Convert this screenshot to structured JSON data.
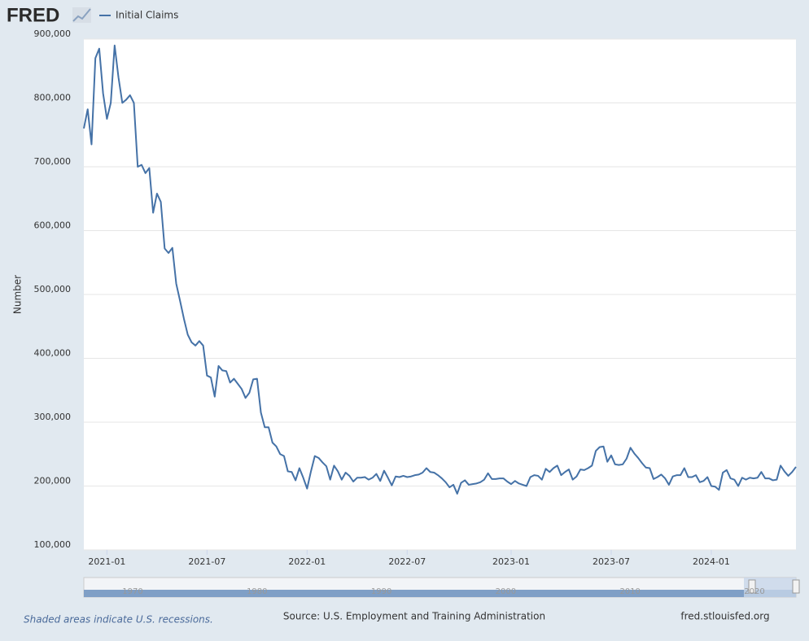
{
  "header": {
    "logo": "FRED"
  },
  "chart_data": {
    "type": "line",
    "ylabel": "Number",
    "categories": [
      null,
      null,
      null,
      null,
      null,
      null,
      "2021-01",
      null,
      null,
      null,
      null,
      null,
      null,
      null,
      null,
      null,
      null,
      null,
      null,
      null,
      null,
      null,
      null,
      null,
      null,
      null,
      null,
      null,
      null,
      null,
      null,
      null,
      "2021-07",
      null,
      null,
      null,
      null,
      null,
      null,
      null,
      null,
      null,
      null,
      null,
      null,
      null,
      null,
      null,
      null,
      null,
      null,
      null,
      null,
      null,
      null,
      null,
      null,
      null,
      "2022-01",
      null,
      null,
      null,
      null,
      null,
      null,
      null,
      null,
      null,
      null,
      null,
      null,
      null,
      null,
      null,
      null,
      null,
      null,
      null,
      null,
      null,
      null,
      null,
      null,
      null,
      "2022-07",
      null,
      null,
      null,
      null,
      null,
      null,
      null,
      null,
      null,
      null,
      null,
      null,
      null,
      null,
      null,
      null,
      null,
      null,
      null,
      null,
      null,
      null,
      null,
      null,
      null,
      null,
      "2023-01",
      null,
      null,
      null,
      null,
      null,
      null,
      null,
      null,
      null,
      null,
      null,
      null,
      null,
      null,
      null,
      null,
      null,
      null,
      null,
      null,
      null,
      null,
      null,
      null,
      null,
      "2023-07",
      null,
      null,
      null,
      null,
      null,
      null,
      null,
      null,
      null,
      null,
      null,
      null,
      null,
      null,
      null,
      null,
      null,
      null,
      null,
      null,
      null,
      null,
      null,
      null,
      null,
      "2024-01",
      null,
      null,
      null,
      null,
      null,
      null,
      null,
      null,
      null,
      null,
      null,
      null,
      null,
      null,
      null,
      null,
      null,
      null,
      null,
      null,
      null,
      null
    ],
    "series": [
      {
        "name": "Initial Claims",
        "color": "#4572a7",
        "values": [
          760000,
          790000,
          735000,
          870000,
          885000,
          815000,
          775000,
          800000,
          890000,
          840000,
          800000,
          805000,
          812000,
          800000,
          700000,
          703000,
          690000,
          698000,
          628000,
          658000,
          645000,
          572000,
          565000,
          573000,
          517000,
          490000,
          462000,
          437000,
          425000,
          420000,
          427000,
          420000,
          373000,
          370000,
          340000,
          388000,
          381000,
          380000,
          362000,
          368000,
          360000,
          352000,
          338000,
          346000,
          367000,
          368000,
          315000,
          292000,
          292000,
          268000,
          262000,
          250000,
          247000,
          223000,
          222000,
          209000,
          228000,
          213000,
          196000,
          223000,
          247000,
          244000,
          237000,
          231000,
          210000,
          232000,
          223000,
          210000,
          221000,
          216000,
          207000,
          213000,
          213000,
          214000,
          210000,
          213000,
          219000,
          208000,
          224000,
          213000,
          201000,
          215000,
          214000,
          216000,
          214000,
          215000,
          217000,
          218000,
          221000,
          228000,
          222000,
          221000,
          217000,
          212000,
          206000,
          198000,
          202000,
          188000,
          205000,
          209000,
          202000,
          203000,
          204000,
          206000,
          210000,
          220000,
          211000,
          211000,
          212000,
          212000,
          207000,
          203000,
          208000,
          204000,
          202000,
          200000,
          214000,
          217000,
          216000,
          210000,
          227000,
          222000,
          228000,
          232000,
          217000,
          222000,
          226000,
          210000,
          215000,
          226000,
          225000,
          228000,
          232000,
          255000,
          261000,
          262000,
          238000,
          248000,
          234000,
          233000,
          234000,
          243000,
          260000,
          251000,
          244000,
          236000,
          229000,
          228000,
          211000,
          214000,
          218000,
          212000,
          202000,
          215000,
          217000,
          217000,
          228000,
          214000,
          214000,
          217000,
          206000,
          208000,
          214000,
          200000,
          199000,
          194000,
          221000,
          225000,
          212000,
          210000,
          200000,
          213000,
          210000,
          213000,
          212000,
          213000,
          222000,
          212000,
          212000,
          209000,
          210000,
          232000,
          223000,
          216000,
          222000,
          230000
        ]
      }
    ],
    "ylim": [
      100000,
      900000
    ],
    "yticks": [
      {
        "value": 100000,
        "label": "100,000"
      },
      {
        "value": 200000,
        "label": "200,000"
      },
      {
        "value": 300000,
        "label": "300,000"
      },
      {
        "value": 400000,
        "label": "400,000"
      },
      {
        "value": 500000,
        "label": "500,000"
      },
      {
        "value": 600000,
        "label": "600,000"
      },
      {
        "value": 700000,
        "label": "700,000"
      },
      {
        "value": 800000,
        "label": "800,000"
      },
      {
        "value": 900000,
        "label": "900,000"
      }
    ],
    "grid": true
  },
  "navigator": {
    "labels": [
      "1970",
      "1980",
      "1990",
      "2000",
      "2010",
      "2020"
    ]
  },
  "footer": {
    "note": "Shaded areas indicate U.S. recessions.",
    "source": "Source: U.S. Employment and Training Administration",
    "site": "fred.stlouisfed.org"
  }
}
